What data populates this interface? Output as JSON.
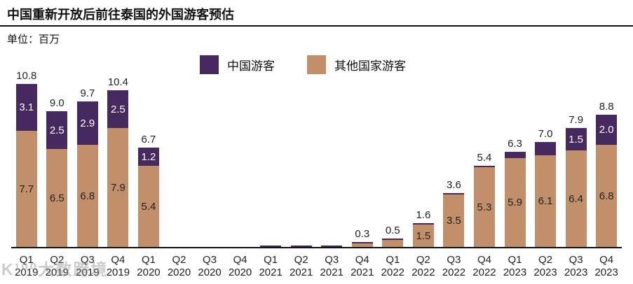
{
  "watermark": "K¹⁰⁰大数跨境",
  "chart_data": {
    "type": "bar",
    "subtype": "stacked",
    "title": "中国重新开放后前往泰国的外国游客预估",
    "unit_label": "单位：百万",
    "xlabel": "",
    "ylabel": "百万",
    "ylim": [
      0,
      11.5
    ],
    "grid": false,
    "legend_position": "top",
    "legend": [
      {
        "label": "中国游客",
        "color": "#46295f"
      },
      {
        "label": "其他国家游客",
        "color": "#c1906a"
      }
    ],
    "categories": [
      {
        "quarter": "Q1",
        "year": "2019"
      },
      {
        "quarter": "Q2",
        "year": "2019"
      },
      {
        "quarter": "Q3",
        "year": "2019"
      },
      {
        "quarter": "Q4",
        "year": "2019"
      },
      {
        "quarter": "Q1",
        "year": "2020"
      },
      {
        "quarter": "Q2",
        "year": "2020"
      },
      {
        "quarter": "Q3",
        "year": "2020"
      },
      {
        "quarter": "Q4",
        "year": "2020"
      },
      {
        "quarter": "Q1",
        "year": "2021"
      },
      {
        "quarter": "Q2",
        "year": "2021"
      },
      {
        "quarter": "Q3",
        "year": "2021"
      },
      {
        "quarter": "Q4",
        "year": "2021"
      },
      {
        "quarter": "Q1",
        "year": "2022"
      },
      {
        "quarter": "Q2",
        "year": "2022"
      },
      {
        "quarter": "Q3",
        "year": "2022"
      },
      {
        "quarter": "Q4",
        "year": "2022"
      },
      {
        "quarter": "Q1",
        "year": "2023"
      },
      {
        "quarter": "Q2",
        "year": "2023"
      },
      {
        "quarter": "Q3",
        "year": "2023"
      },
      {
        "quarter": "Q4",
        "year": "2023"
      }
    ],
    "series": [
      {
        "name": "中国游客",
        "color": "#46295f",
        "text_color": "#ffffff",
        "values": [
          3.1,
          2.5,
          2.9,
          2.5,
          1.2,
          0,
          0,
          0,
          0.03,
          0.03,
          0.03,
          0.05,
          0.05,
          0.1,
          0.1,
          0.1,
          0.4,
          0.9,
          1.5,
          2.0
        ],
        "labels": [
          "3.1",
          "2.5",
          "2.9",
          "2.5",
          "1.2",
          "",
          "",
          "",
          "",
          "",
          "",
          "",
          "",
          "",
          "",
          "",
          "",
          "",
          "1.5",
          "2.0"
        ]
      },
      {
        "name": "其他国家游客",
        "color": "#c1906a",
        "text_color": "#222222",
        "values": [
          7.7,
          6.5,
          6.8,
          7.9,
          5.4,
          0,
          0,
          0,
          0,
          0,
          0,
          0.25,
          0.45,
          1.5,
          3.5,
          5.3,
          5.9,
          6.1,
          6.4,
          6.8
        ],
        "labels": [
          "7.7",
          "6.5",
          "6.8",
          "7.9",
          "5.4",
          "",
          "",
          "",
          "",
          "",
          "",
          "",
          "",
          "1.5",
          "3.5",
          "5.3",
          "5.9",
          "6.1",
          "6.4",
          "6.8"
        ]
      }
    ],
    "totals": [
      "10.8",
      "9.0",
      "9.7",
      "10.4",
      "6.7",
      "",
      "",
      "",
      "",
      "",
      "",
      "0.3",
      "0.5",
      "1.6",
      "3.6",
      "5.4",
      "6.3",
      "7.0",
      "7.9",
      "8.8"
    ]
  }
}
